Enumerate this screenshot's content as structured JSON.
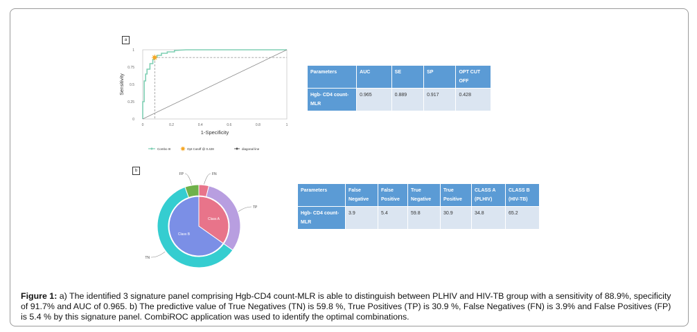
{
  "panel_a": {
    "label": "a",
    "chart_data": {
      "type": "line",
      "xlabel": "1-Specificity",
      "ylabel": "Sensitivity",
      "xlim": [
        0,
        1
      ],
      "ylim": [
        0,
        1
      ],
      "x_ticks": [
        "0",
        "0.2",
        "0.4",
        "0.6",
        "0.8",
        "1"
      ],
      "y_ticks": [
        "0",
        "0.25",
        "0.5",
        "0.75",
        "1"
      ],
      "grid": false,
      "legend_position": "bottom",
      "series": [
        {
          "name": "Combo III",
          "color": "#7fcfb3",
          "x": [
            0,
            0,
            0.01,
            0.01,
            0.02,
            0.02,
            0.03,
            0.03,
            0.05,
            0.05,
            0.07,
            0.07,
            0.083,
            0.083,
            0.1,
            0.1,
            0.13,
            0.13,
            0.17,
            0.17,
            0.22,
            0.22,
            0.3,
            1
          ],
          "y": [
            0,
            0.25,
            0.25,
            0.55,
            0.55,
            0.65,
            0.65,
            0.72,
            0.72,
            0.8,
            0.8,
            0.86,
            0.86,
            0.889,
            0.889,
            0.92,
            0.92,
            0.95,
            0.95,
            0.97,
            0.97,
            0.99,
            1,
            1
          ]
        },
        {
          "name": "diagonal line",
          "color": "#888888",
          "x": [
            0,
            1
          ],
          "y": [
            0,
            1
          ]
        }
      ],
      "points": [
        {
          "name": "Opt Cutoff @ 0.428",
          "x": 0.083,
          "y": 0.889,
          "color": "#f5a623"
        }
      ]
    },
    "table": {
      "headers": [
        "Parameters",
        "AUC",
        "SE",
        "SP",
        "OPT CUT OFF"
      ],
      "row": [
        "Hgb- CD4 count-MLR",
        "0.965",
        "0.889",
        "0.917",
        "0.428"
      ]
    }
  },
  "panel_b": {
    "label": "b",
    "chart_data": {
      "type": "pie",
      "outer_ring": {
        "labels": [
          "FN",
          "TP",
          "TN",
          "FP"
        ],
        "values": [
          3.9,
          30.9,
          59.8,
          5.4
        ],
        "colors": [
          "#e8748a",
          "#b89ee0",
          "#35cdd0",
          "#6fb14a"
        ]
      },
      "inner_ring": {
        "labels": [
          "Class A",
          "Class B"
        ],
        "values": [
          34.8,
          65.2
        ],
        "colors": [
          "#e8748a",
          "#7b8fe6"
        ]
      }
    },
    "table": {
      "headers": [
        "Parameters",
        "False Negative",
        "False Positive",
        "True Negative",
        "True Positive",
        "CLASS A (PLHIV)",
        "CLASS B (HIV-TB)"
      ],
      "row": [
        "Hgb- CD4 count-MLR",
        "3.9",
        "5.4",
        "59.8",
        "30.9",
        "34.8",
        "65.2"
      ]
    }
  },
  "caption": {
    "bold": "Figure 1:",
    "text": " a) The identified 3 signature panel comprising Hgb-CD4 count-MLR is able to distinguish between PLHIV and HIV-TB group with a sensitivity of 88.9%, specificity of 91.7% and AUC of 0.965. b) The predictive value of True Negatives (TN) is 59.8 %, True Positives (TP) is 30.9 %, False Negatives (FN) is 3.9% and False Positives (FP) is 5.4 % by this signature panel. CombiROC application was used to identify the optimal combinations."
  }
}
